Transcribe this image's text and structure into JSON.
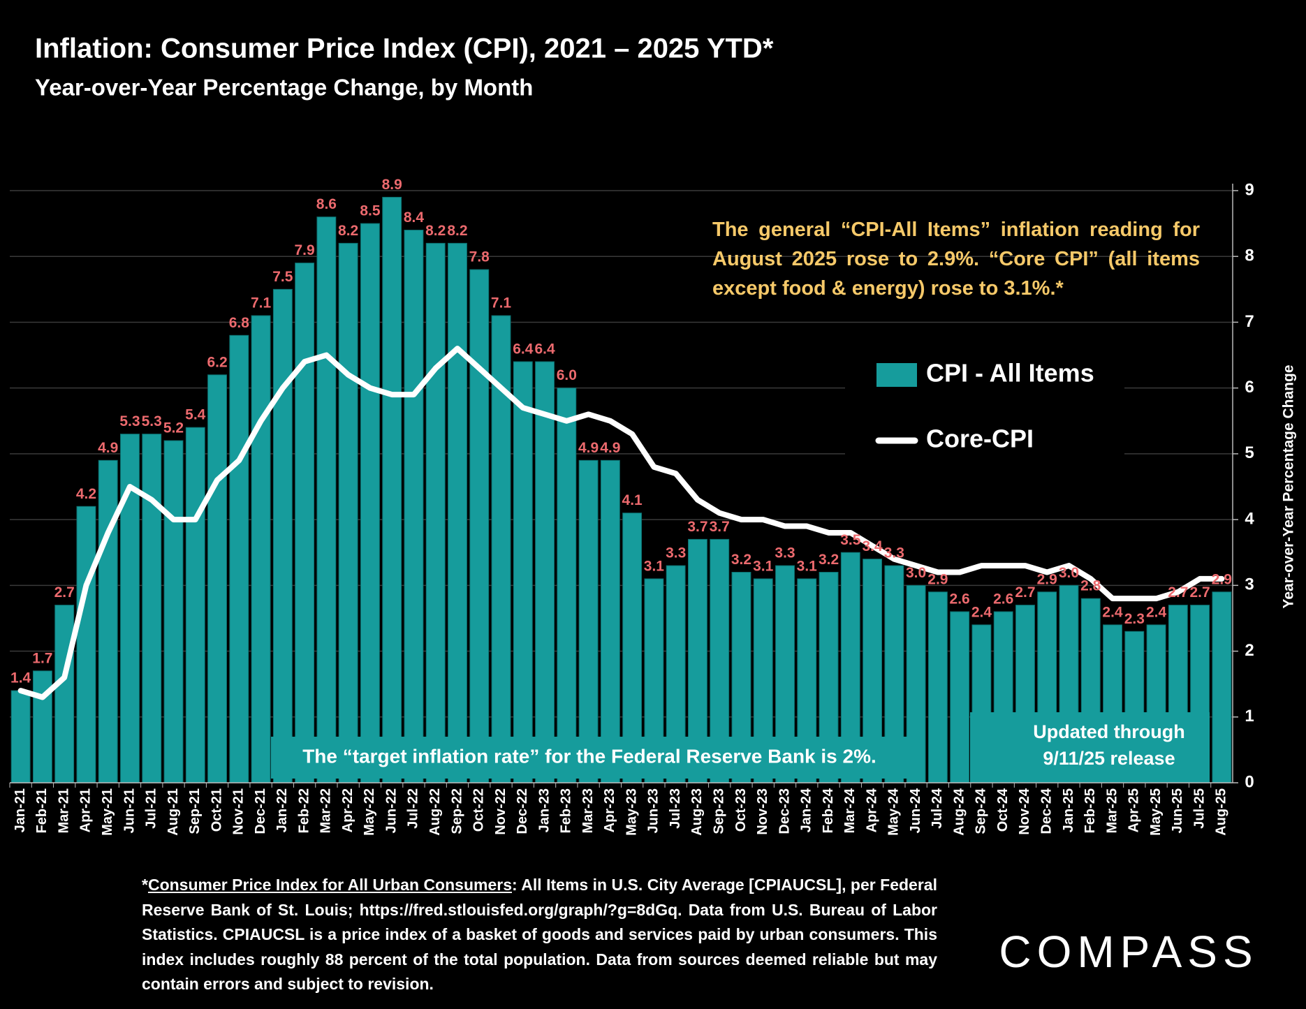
{
  "chart_data": {
    "type": "bar",
    "title": "Inflation: Consumer Price Index (CPI), 2021 – 2025 YTD*",
    "subtitle": "Year-over-Year Percentage Change, by Month",
    "y_axis_label": "Year-over-Year Percentage Change",
    "categories": [
      "Jan-21",
      "Feb-21",
      "Mar-21",
      "Apr-21",
      "May-21",
      "Jun-21",
      "Jul-21",
      "Aug-21",
      "Sep-21",
      "Oct-21",
      "Nov-21",
      "Dec-21",
      "Jan-22",
      "Feb-22",
      "Mar-22",
      "Apr-22",
      "May-22",
      "Jun-22",
      "Jul-22",
      "Aug-22",
      "Sep-22",
      "Oct-22",
      "Nov-22",
      "Dec-22",
      "Jan-23",
      "Feb-23",
      "Mar-23",
      "Apr-23",
      "May-23",
      "Jun-23",
      "Jul-23",
      "Aug-23",
      "Sep-23",
      "Oct-23",
      "Nov-23",
      "Dec-23",
      "Jan-24",
      "Feb-24",
      "Mar-24",
      "Apr-24",
      "May-24",
      "Jun-24",
      "Jul-24",
      "Aug-24",
      "Sep-24",
      "Oct-24",
      "Nov-24",
      "Dec-24",
      "Jan-25",
      "Feb-25",
      "Mar-25",
      "Apr-25",
      "May-25",
      "Jun-25",
      "Jul-25",
      "Aug-25"
    ],
    "series": [
      {
        "name": "CPI - All Items",
        "type": "bar",
        "color": "#169c9c",
        "label_color": "#ec6a6e",
        "values": [
          1.4,
          1.7,
          2.7,
          4.2,
          4.9,
          5.3,
          5.3,
          5.2,
          5.4,
          6.2,
          6.8,
          7.1,
          7.5,
          7.9,
          8.6,
          8.2,
          8.5,
          8.9,
          8.4,
          8.2,
          8.2,
          7.8,
          7.1,
          6.4,
          6.4,
          6.0,
          4.9,
          4.9,
          4.1,
          3.1,
          3.3,
          3.7,
          3.7,
          3.2,
          3.1,
          3.3,
          3.1,
          3.2,
          3.5,
          3.4,
          3.3,
          3.0,
          2.9,
          2.6,
          2.4,
          2.6,
          2.7,
          2.9,
          3.0,
          2.8,
          2.4,
          2.3,
          2.4,
          2.7,
          2.7,
          2.9
        ],
        "value_labels": [
          "1.4",
          "1.7",
          "2.7",
          "4.2",
          "4.9",
          "5.3",
          "5.3",
          "5.2",
          "5.4",
          "6.2",
          "6.8",
          "7.1",
          "7.5",
          "7.9",
          "8.6",
          "8.2",
          "8.5",
          "8.9",
          "8.4",
          "8.2",
          "8.2",
          "7.8",
          "7.1",
          "6.4",
          "6.4",
          "6.0",
          "4.9",
          "4.9",
          "4.1",
          "3.1",
          "3.3",
          "3.7",
          "3.7",
          "3.2",
          "3.1",
          "3.3",
          "3.1",
          "3.2",
          "3.5",
          "3.4",
          "3.3",
          "3.0",
          "2.9",
          "2.6",
          "2.4",
          "2.6",
          "2.7",
          "2.9",
          "3.0",
          "2.8",
          "2.4",
          "2.3",
          "2.4",
          "2.7",
          "2.7",
          "2.9"
        ]
      },
      {
        "name": "Core-CPI",
        "type": "line",
        "color": "#ffffff",
        "values": [
          1.4,
          1.3,
          1.6,
          3.0,
          3.8,
          4.5,
          4.3,
          4.0,
          4.0,
          4.6,
          4.9,
          5.5,
          6.0,
          6.4,
          6.5,
          6.2,
          6.0,
          5.9,
          5.9,
          6.3,
          6.6,
          6.3,
          6.0,
          5.7,
          5.6,
          5.5,
          5.6,
          5.5,
          5.3,
          4.8,
          4.7,
          4.3,
          4.1,
          4.0,
          4.0,
          3.9,
          3.9,
          3.8,
          3.8,
          3.6,
          3.4,
          3.3,
          3.2,
          3.2,
          3.3,
          3.3,
          3.3,
          3.2,
          3.3,
          3.1,
          2.8,
          2.8,
          2.8,
          2.9,
          3.1,
          3.1
        ]
      }
    ],
    "ylim": [
      0,
      9
    ],
    "yticks": [
      0,
      1,
      2,
      3,
      4,
      5,
      6,
      7,
      8,
      9
    ],
    "grid": true,
    "annotations": {
      "note": "The general “CPI-All Items” inflation reading for August 2025 rose to 2.9%. “Core CPI” (all items except food & energy) rose to 3.1%.*",
      "target": "The “target inflation rate” for the Federal Reserve Bank is 2%.",
      "updated": [
        "Updated through",
        "9/11/25 release"
      ]
    },
    "footnote": {
      "prefix": "*",
      "link": "Consumer Price Index for All Urban Consumers",
      "text": ": All Items in U.S. City Average [CPIAUCSL], per Federal Reserve Bank of St. Louis; https://fred.stlouisfed.org/graph/?g=8dGq. Data from U.S. Bureau of Labor Statistics. CPIAUCSL is a price index of a basket of goods and services paid by urban consumers. This index includes roughly 88 percent of the total population. Data from sources deemed reliable but may contain errors and subject to revision."
    },
    "logo": "COMPASS"
  }
}
